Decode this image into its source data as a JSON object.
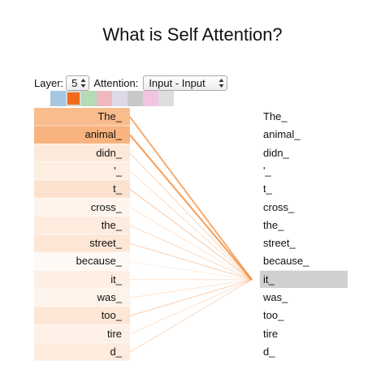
{
  "title": "What is Self Attention?",
  "controls": {
    "layer_label": "Layer:",
    "layer_value": "5",
    "attention_label": "Attention:",
    "attention_value": "Input - Input"
  },
  "head_colors": [
    "#a7c7e0",
    "#f26b1d",
    "#b4dbb4",
    "#f0b8be",
    "#ddd9e6",
    "#c9c9c9",
    "#f2c4e4",
    "#dedede"
  ],
  "active_head": 1,
  "colors": {
    "attention": "#f48b3a",
    "query_highlight": "#d0d0d0"
  },
  "tokens": [
    "The_",
    "animal_",
    "didn_",
    "'_",
    "t_",
    "cross_",
    "the_",
    "street_",
    "because_",
    "it_",
    "was_",
    "too_",
    "tire",
    "d_"
  ],
  "query_index": 9,
  "attention_weights": [
    0.55,
    0.62,
    0.18,
    0.14,
    0.24,
    0.09,
    0.16,
    0.2,
    0.05,
    0.13,
    0.1,
    0.2,
    0.12,
    0.16
  ]
}
